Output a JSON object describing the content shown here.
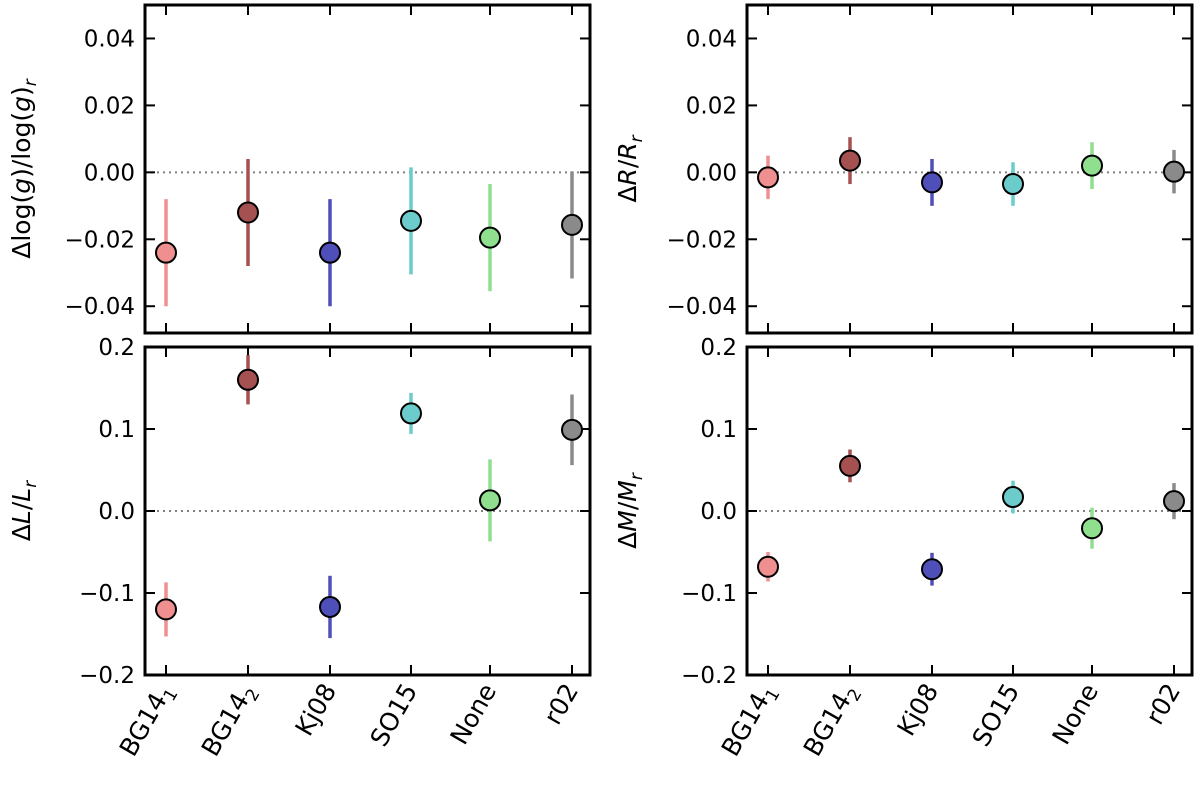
{
  "figure": {
    "description_labels": [
      "Δlog(g)/log(g)r",
      "ΔR/Rr",
      "ΔL/Lr",
      "ΔM/Mr"
    ]
  },
  "colors": {
    "series": [
      "#f08f8f",
      "#a65151",
      "#4f4fb9",
      "#6ccccc",
      "#8fdf8f",
      "#8a8a8a"
    ],
    "marker_edge": "#000000",
    "zero_line": "#808080"
  },
  "chart_data": [
    {
      "type": "scatter",
      "panel": "top-left",
      "ylabel": "Δlog(g)/log(g)r",
      "ylabel_parts": {
        "pre": "Δlog(",
        "var1": "g",
        "mid": ")/log(",
        "var2": "g",
        "post": ")",
        "sub": "r"
      },
      "ylim": [
        -0.048,
        0.05
      ],
      "yticks": [
        -0.04,
        -0.02,
        0.0,
        0.02,
        0.04
      ],
      "ytick_labels": [
        "−0.04",
        "−0.02",
        "0.00",
        "0.02",
        "0.04"
      ],
      "categories": [
        "BG141",
        "BG142",
        "Kj08",
        "SO15",
        "None",
        "r02"
      ],
      "values": [
        -0.024,
        -0.012,
        -0.024,
        -0.0145,
        -0.0195,
        -0.0157
      ],
      "errors": [
        0.016,
        0.016,
        0.016,
        0.016,
        0.016,
        0.016
      ],
      "zero_line": 0,
      "show_xticklabels": false
    },
    {
      "type": "scatter",
      "panel": "top-right",
      "ylabel": "ΔR/Rr",
      "ylabel_parts": {
        "pre": "Δ",
        "var1": "R",
        "mid": "/",
        "var2": "R",
        "post": "",
        "sub": "r"
      },
      "ylim": [
        -0.048,
        0.05
      ],
      "yticks": [
        -0.04,
        -0.02,
        0.0,
        0.02,
        0.04
      ],
      "ytick_labels": [
        "−0.04",
        "−0.02",
        "0.00",
        "0.02",
        "0.04"
      ],
      "categories": [
        "BG141",
        "BG142",
        "Kj08",
        "SO15",
        "None",
        "r02"
      ],
      "values": [
        -0.0015,
        0.0035,
        -0.003,
        -0.0035,
        0.002,
        0.0002
      ],
      "errors": [
        0.0065,
        0.007,
        0.007,
        0.0065,
        0.007,
        0.0065
      ],
      "zero_line": 0,
      "show_xticklabels": false
    },
    {
      "type": "scatter",
      "panel": "bottom-left",
      "ylabel": "ΔL/Lr",
      "ylabel_parts": {
        "pre": "Δ",
        "var1": "L",
        "mid": "/",
        "var2": "L",
        "post": "",
        "sub": "r"
      },
      "ylim": [
        -0.2,
        0.2
      ],
      "yticks": [
        -0.2,
        -0.1,
        0.0,
        0.1,
        0.2
      ],
      "ytick_labels": [
        "−0.2",
        "−0.1",
        "0.0",
        "0.1",
        "0.2"
      ],
      "categories": [
        "BG141",
        "BG142",
        "Kj08",
        "SO15",
        "None",
        "r02"
      ],
      "values": [
        -0.12,
        0.16,
        -0.117,
        0.119,
        0.013,
        0.099
      ],
      "errors": [
        0.033,
        0.03,
        0.038,
        0.025,
        0.05,
        0.043
      ],
      "zero_line": 0,
      "show_xticklabels": true
    },
    {
      "type": "scatter",
      "panel": "bottom-right",
      "ylabel": "ΔM/Mr",
      "ylabel_parts": {
        "pre": "Δ",
        "var1": "M",
        "mid": "/",
        "var2": "M",
        "post": "",
        "sub": "r"
      },
      "ylim": [
        -0.2,
        0.2
      ],
      "yticks": [
        -0.2,
        -0.1,
        0.0,
        0.1,
        0.2
      ],
      "ytick_labels": [
        "−0.2",
        "−0.1",
        "0.0",
        "0.1",
        "0.2"
      ],
      "categories": [
        "BG141",
        "BG142",
        "Kj08",
        "SO15",
        "None",
        "r02"
      ],
      "values": [
        -0.068,
        0.055,
        -0.071,
        0.017,
        -0.021,
        0.012
      ],
      "errors": [
        0.018,
        0.02,
        0.02,
        0.02,
        0.025,
        0.022
      ],
      "zero_line": 0,
      "show_xticklabels": true
    }
  ],
  "x_labels": [
    {
      "base": "BG14",
      "sub": "1"
    },
    {
      "base": "BG14",
      "sub": "2"
    },
    {
      "base": "Kj08",
      "sub": ""
    },
    {
      "base": "SO15",
      "sub": ""
    },
    {
      "base": "None",
      "sub": ""
    },
    {
      "base": "r02",
      "sub": ""
    }
  ]
}
